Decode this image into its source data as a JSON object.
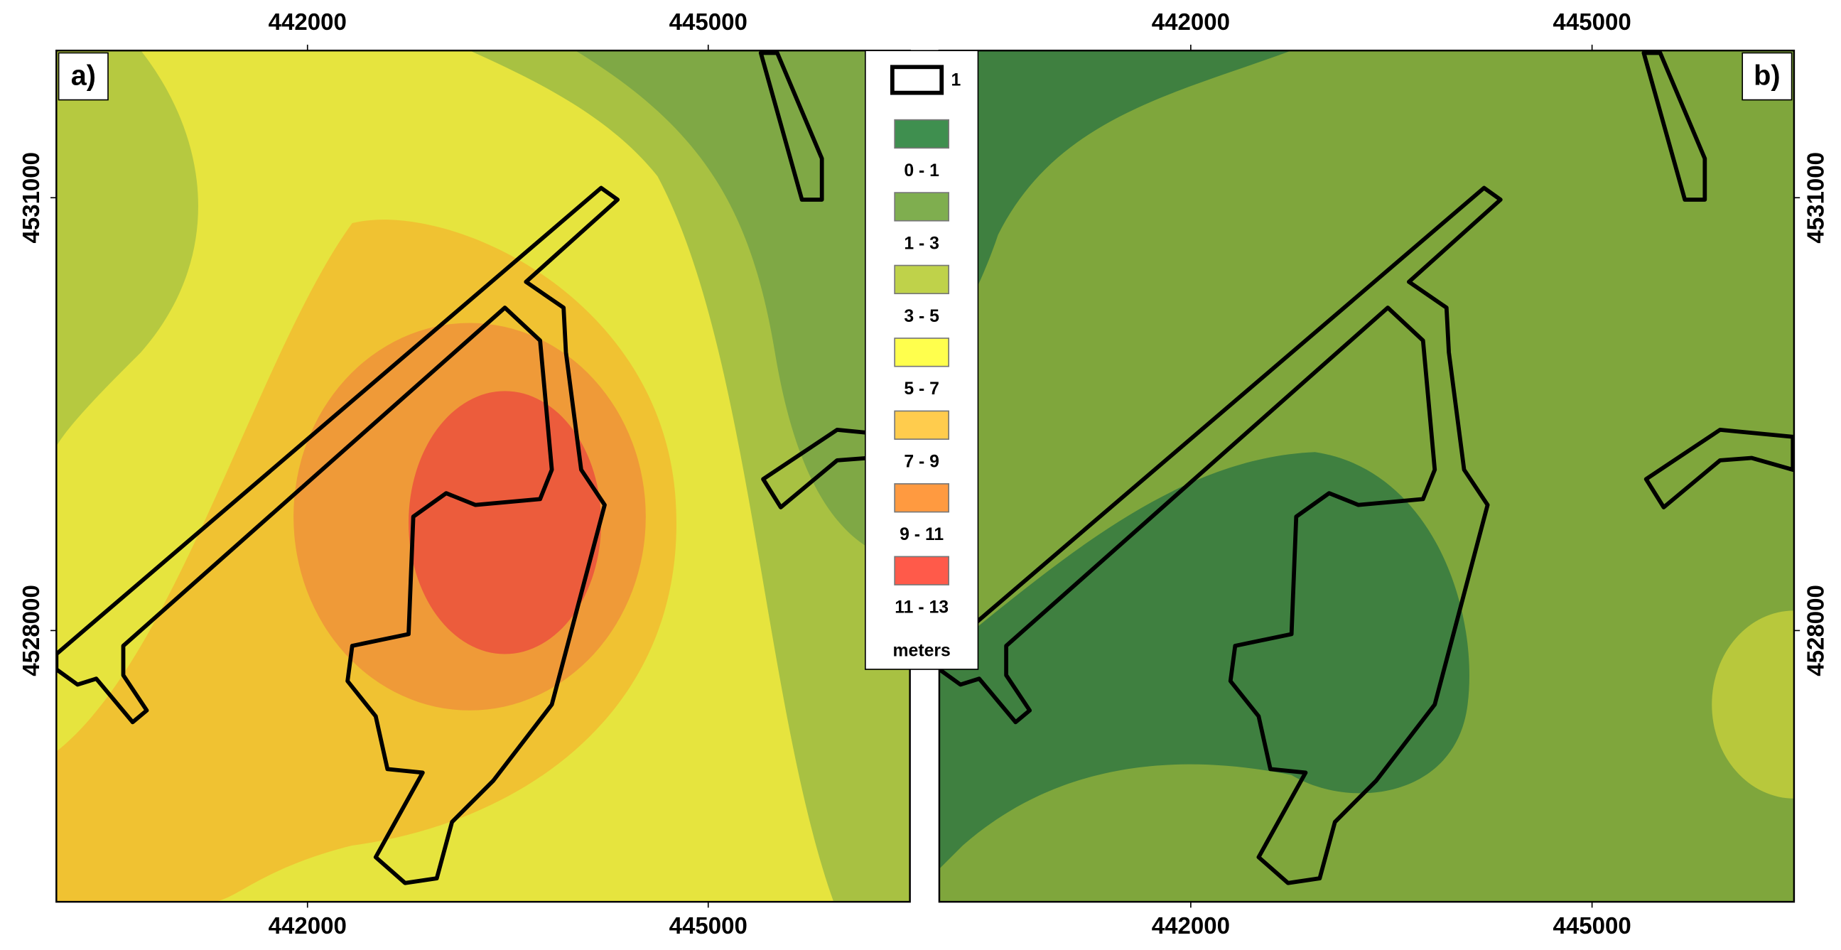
{
  "panels": [
    {
      "label": "a)"
    },
    {
      "label": "b)"
    }
  ],
  "map": {
    "xlim": [
      440120,
      446510
    ],
    "ylim": [
      4526120,
      4532020
    ],
    "xticks": [
      442000,
      445000
    ],
    "yticks": [
      4531000,
      4528000
    ]
  },
  "legend": {
    "boundary_label": "1",
    "classes": [
      {
        "label": "0 - 1",
        "color": "#3f8f4f"
      },
      {
        "label": "1 - 3",
        "color": "#7fae4f"
      },
      {
        "label": "3 - 5",
        "color": "#bfd24a"
      },
      {
        "label": "5 - 7",
        "color": "#ffff4d"
      },
      {
        "label": "7 - 9",
        "color": "#ffcc4d"
      },
      {
        "label": "9 - 11",
        "color": "#ff9a40"
      },
      {
        "label": "11 - 13",
        "color": "#ff5a4a"
      }
    ],
    "unit": "meters"
  }
}
